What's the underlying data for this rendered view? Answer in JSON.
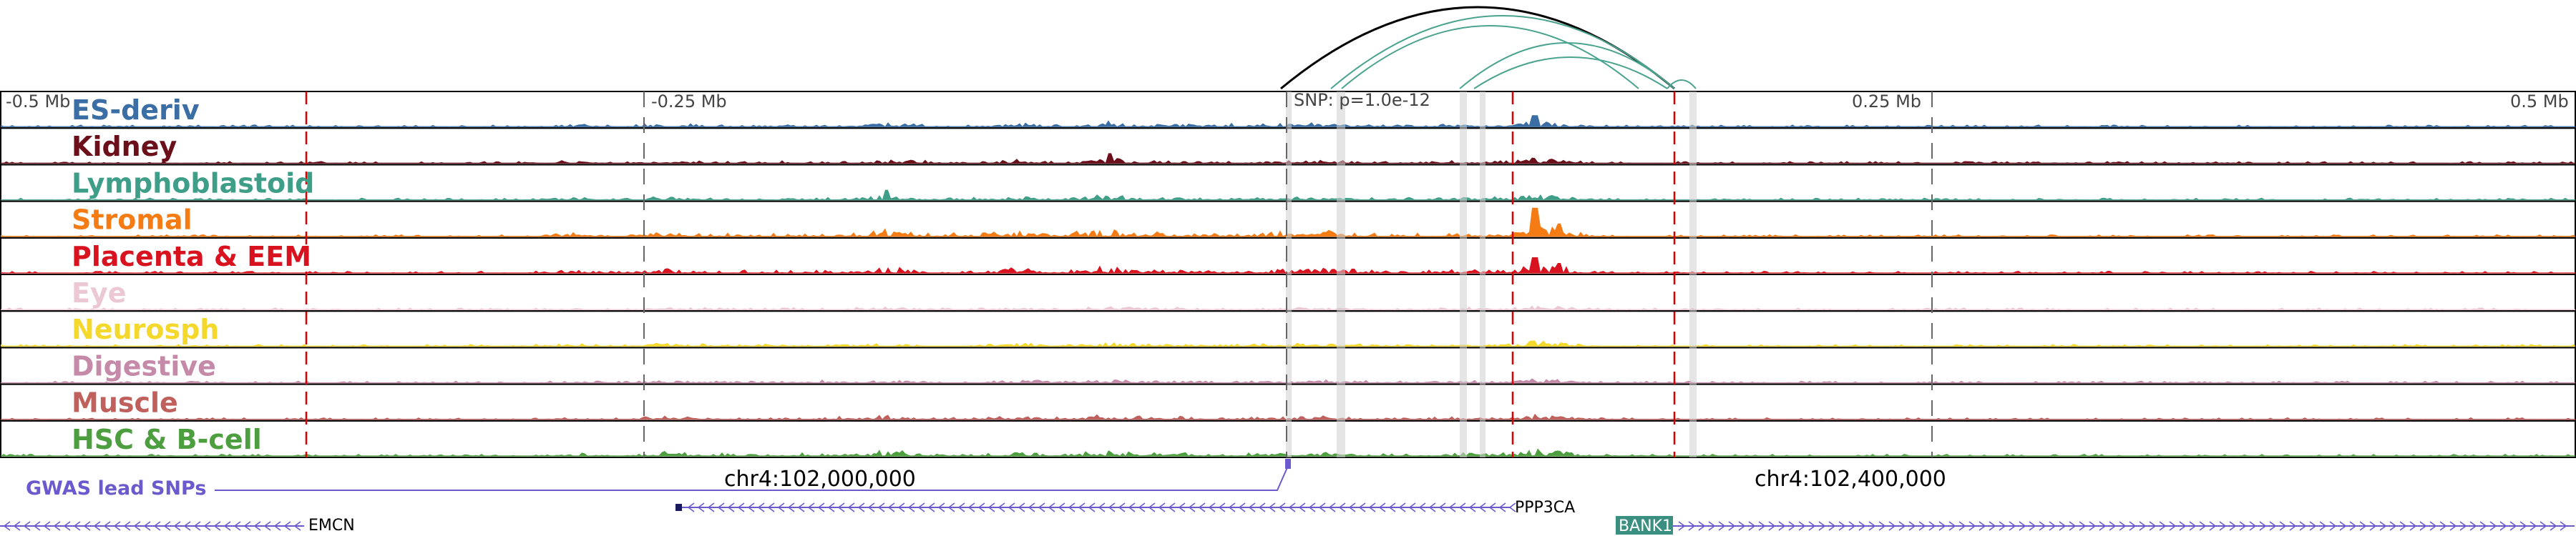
{
  "tracks": [
    {
      "name": "ES-deriv",
      "color": "#3a6ea5"
    },
    {
      "name": "Kidney",
      "color": "#6b0f1a"
    },
    {
      "name": "Lymphoblastoid",
      "color": "#3f9e87"
    },
    {
      "name": "Stromal",
      "color": "#f57c14"
    },
    {
      "name": "Placenta & EEM",
      "color": "#d9121f"
    },
    {
      "name": "Eye",
      "color": "#ecc8d4"
    },
    {
      "name": "Neurosph",
      "color": "#f4d82b"
    },
    {
      "name": "Digestive",
      "color": "#c48aa8"
    },
    {
      "name": "Muscle",
      "color": "#c0605c"
    },
    {
      "name": "HSC & B-cell",
      "color": "#4d9e3f"
    }
  ],
  "axis_ticks": [
    "-0.5 Mb",
    "-0.25 Mb",
    "0.25 Mb",
    "0.5 Mb"
  ],
  "snp_label": "SNP: p=1.0e-12",
  "coordinates": [
    "chr4:102,000,000",
    "chr4:102,400,000"
  ],
  "gwas_label": "GWAS lead SNPs",
  "gwas_color": "#6a5acd",
  "genes": [
    {
      "name": "EMCN",
      "strand": "-"
    },
    {
      "name": "PPP3CA",
      "strand": "-"
    },
    {
      "name": "BANK1",
      "strand": "+"
    }
  ],
  "loop_colors": {
    "primary": "#000000",
    "secondary": "#4aa38f"
  },
  "highlight_color": "#d0d0d0",
  "boundary_color": "#dd0000",
  "bank1_box_color": "#3a8f80"
}
